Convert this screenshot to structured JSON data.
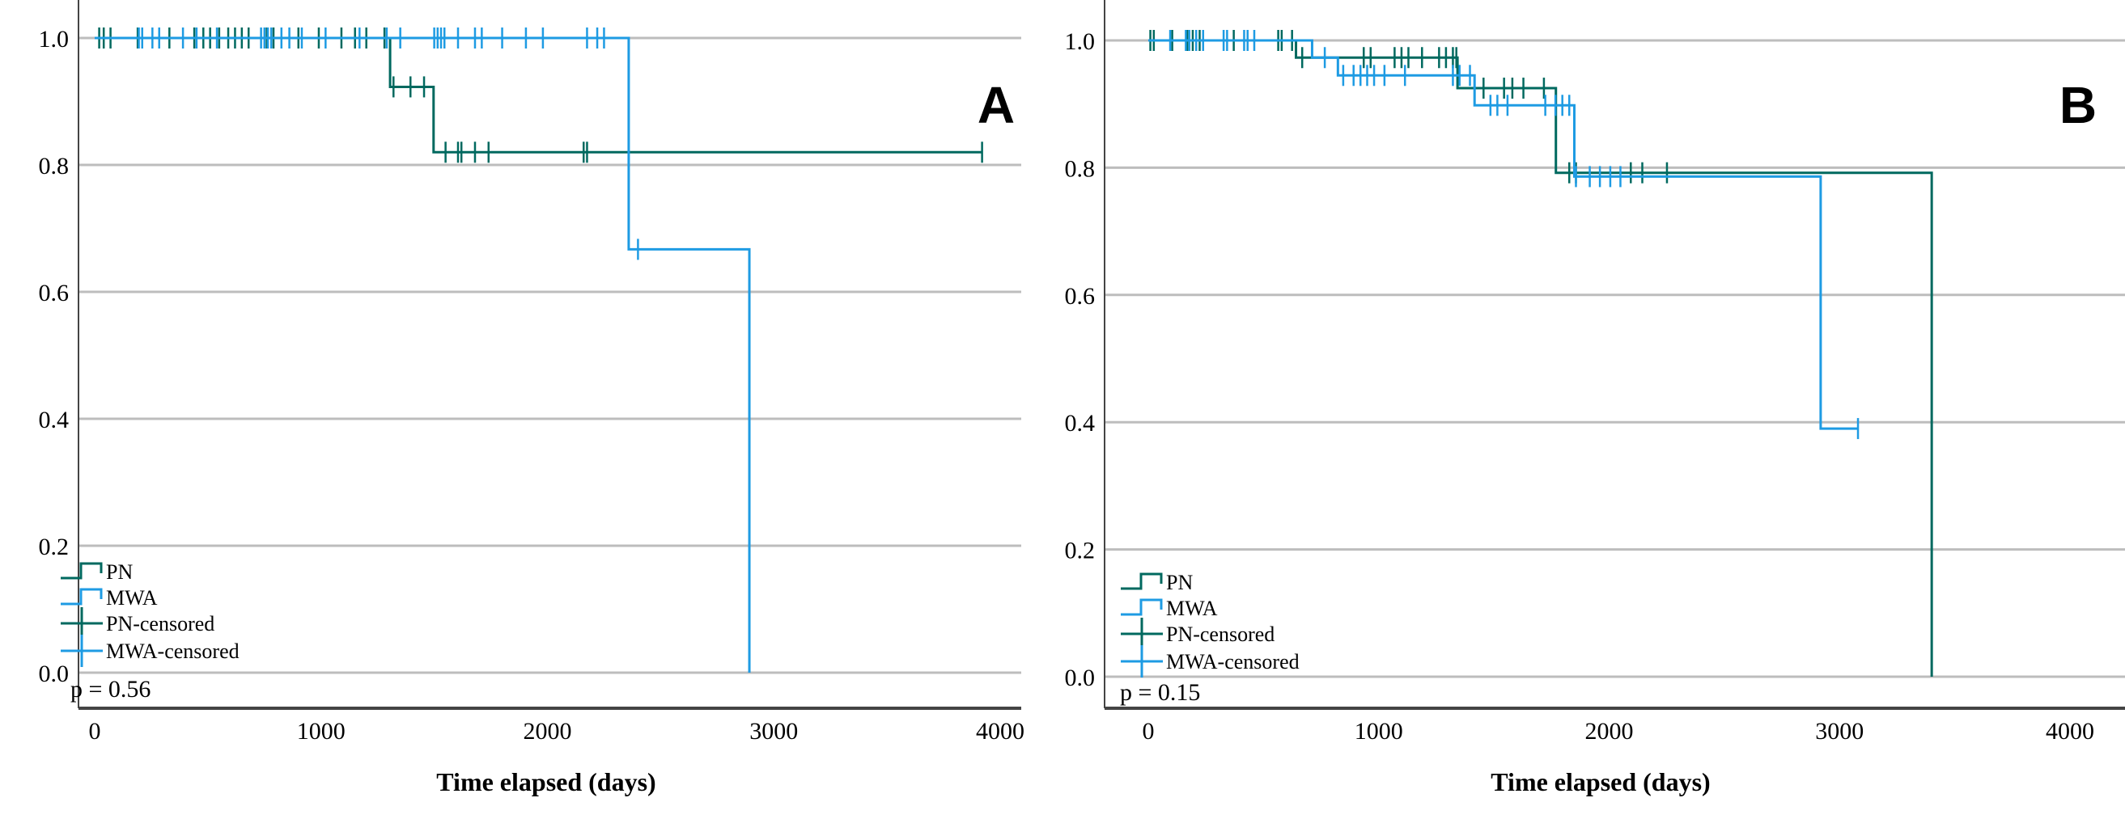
{
  "colors": {
    "PN": "#00695f",
    "MWA": "#1e9be3",
    "grid": "#bdbdbd",
    "axis": "#444444"
  },
  "chart_data": [
    {
      "type": "line",
      "subtype": "kaplan-meier",
      "panel_label": "A",
      "xlabel": "Time elapsed (days)",
      "ylabel": "",
      "xlim": [
        -300,
        4200
      ],
      "ylim": [
        -0.07,
        1.05
      ],
      "xticks": [
        "0",
        "1000",
        "2000",
        "3000",
        "4000"
      ],
      "yticks": [
        "0.0",
        "0.2",
        "0.4",
        "0.6",
        "0.8",
        "1.0"
      ],
      "grid": "horizontal",
      "legend_position": "bottom-left",
      "legend": [
        "PN",
        "MWA",
        "PN-censored",
        "MWA-censored"
      ],
      "annotation": "p = 0.56",
      "series": [
        {
          "name": "PN",
          "color_key": "PN",
          "end": 3920,
          "steps": [
            [
              1305,
              0.923
            ],
            [
              1497,
              0.82
            ]
          ],
          "censored": [
            20,
            40,
            70,
            190,
            210,
            330,
            440,
            480,
            510,
            550,
            590,
            620,
            650,
            680,
            760,
            790,
            900,
            990,
            1090,
            1150,
            1200,
            1280,
            1320,
            1395,
            1455,
            1550,
            1605,
            1620,
            1680,
            1740,
            2160,
            2175,
            3920
          ]
        },
        {
          "name": "MWA",
          "color_key": "MWA",
          "end": 2892,
          "steps": [
            [
              2359,
              0.667
            ],
            [
              2892,
              0.0
            ]
          ],
          "censored": [
            195,
            210,
            255,
            285,
            390,
            450,
            540,
            735,
            750,
            765,
            780,
            825,
            860,
            915,
            1020,
            1170,
            1290,
            1350,
            1500,
            1515,
            1530,
            1545,
            1605,
            1680,
            1710,
            1800,
            1905,
            1980,
            2175,
            2220,
            2250,
            2400
          ]
        }
      ]
    },
    {
      "type": "line",
      "subtype": "kaplan-meier",
      "panel_label": "B",
      "xlabel": "Time elapsed (days)",
      "ylabel": "",
      "xlim": [
        -300,
        4200
      ],
      "ylim": [
        -0.07,
        1.05
      ],
      "xticks": [
        "0",
        "1000",
        "2000",
        "3000",
        "4000"
      ],
      "yticks": [
        "0.0",
        "0.2",
        "0.4",
        "0.6",
        "0.8",
        "1.0"
      ],
      "grid": "horizontal",
      "legend_position": "bottom-left",
      "legend": [
        "PN",
        "MWA",
        "PN-censored",
        "MWA-censored"
      ],
      "annotation": "p = 0.15",
      "series": [
        {
          "name": "PN",
          "color_key": "PN",
          "end": 3400,
          "steps": [
            [
              641,
              0.973
            ],
            [
              1342,
              0.925
            ],
            [
              1769,
              0.792
            ],
            [
              3400,
              0.0
            ]
          ],
          "censored": [
            9,
            24,
            104,
            169,
            193,
            223,
            371,
            564,
            579,
            624,
            668,
            935,
            965,
            1069,
            1099,
            1129,
            1188,
            1262,
            1292,
            1322,
            1337,
            1455,
            1544,
            1580,
            1628,
            1717,
            1827,
            1856,
            2094,
            2144,
            2251
          ]
        },
        {
          "name": "MWA",
          "color_key": "MWA",
          "end": 3080,
          "steps": [
            [
              711,
              0.973
            ],
            [
              823,
              0.945
            ],
            [
              1416,
              0.898
            ],
            [
              1849,
              0.786
            ],
            [
              2918,
              0.39
            ]
          ],
          "censored": [
            95,
            163,
            178,
            208,
            238,
            327,
            342,
            416,
            431,
            460,
            766,
            846,
            891,
            921,
            950,
            980,
            1025,
            1114,
            1322,
            1351,
            1396,
            1485,
            1515,
            1559,
            1723,
            1767,
            1797,
            1827,
            1856,
            1916,
            1960,
            2005,
            2049,
            3080
          ]
        }
      ]
    }
  ]
}
